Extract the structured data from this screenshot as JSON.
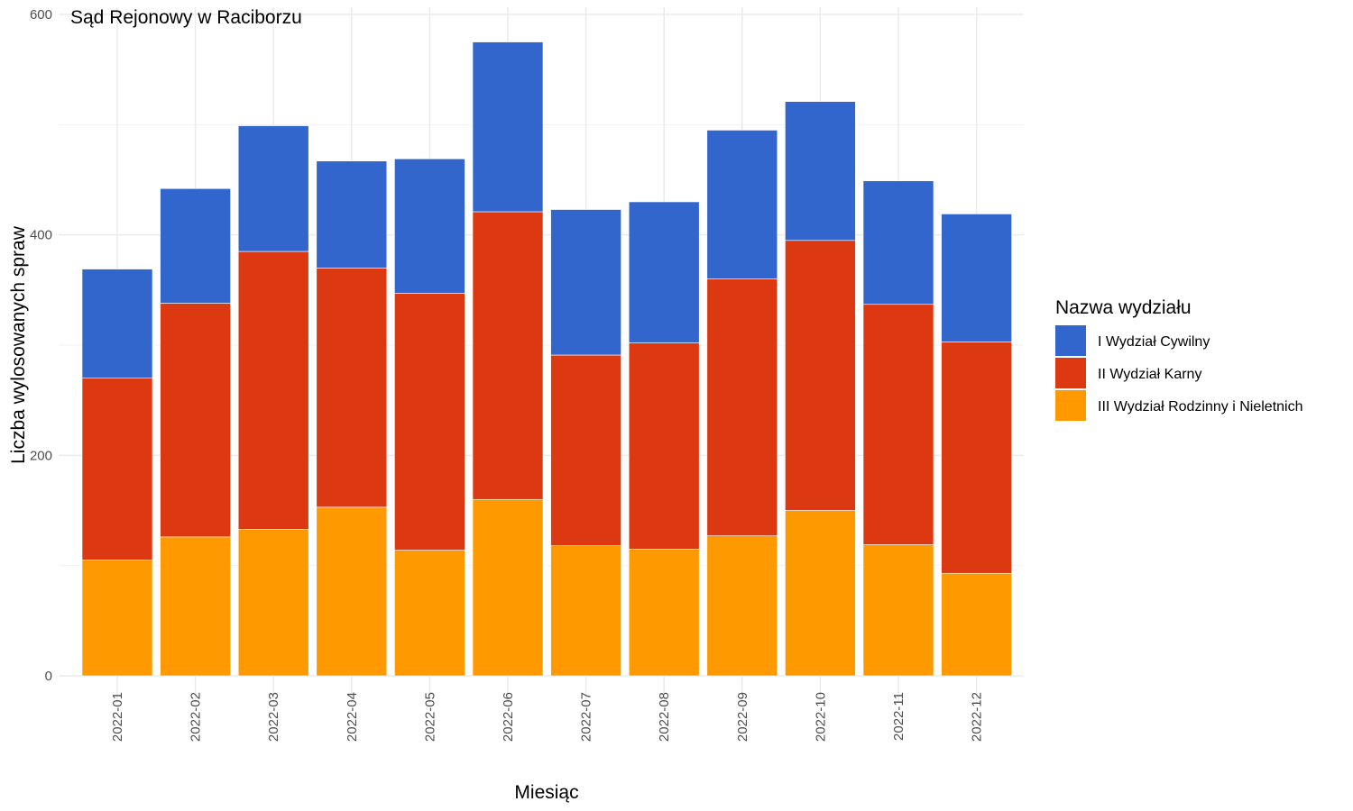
{
  "chart_data": {
    "type": "bar",
    "stacked": true,
    "title": "Sąd Rejonowy w Raciborzu",
    "xlabel": "Miesiąc",
    "ylabel": "Liczba wylosowanych spraw",
    "ylim": [
      0,
      600
    ],
    "yticks": [
      "0",
      "200",
      "400",
      "600"
    ],
    "grid": true,
    "categories": [
      "2022-01",
      "2022-02",
      "2022-03",
      "2022-04",
      "2022-05",
      "2022-06",
      "2022-07",
      "2022-08",
      "2022-09",
      "2022-10",
      "2022-11",
      "2022-12"
    ],
    "series": [
      {
        "name": "III Wydział Rodzinny i Nieletnich",
        "color": "#FF9900",
        "values": [
          105,
          126,
          133,
          153,
          114,
          160,
          118,
          115,
          127,
          150,
          119,
          93
        ]
      },
      {
        "name": "II Wydział Karny",
        "color": "#DC3912",
        "values": [
          165,
          212,
          252,
          217,
          233,
          261,
          173,
          187,
          233,
          245,
          218,
          210
        ]
      },
      {
        "name": "I Wydział Cywilny",
        "color": "#3366CC",
        "values": [
          99,
          104,
          114,
          97,
          122,
          154,
          132,
          128,
          135,
          126,
          112,
          116
        ]
      }
    ],
    "legend": {
      "title": "Nazwa wydziału",
      "position": "right",
      "items": [
        {
          "label": "I Wydział Cywilny",
          "color": "#3366CC"
        },
        {
          "label": "II Wydział Karny",
          "color": "#DC3912"
        },
        {
          "label": "III Wydział Rodzinny i Nieletnich",
          "color": "#FF9900"
        }
      ]
    }
  }
}
